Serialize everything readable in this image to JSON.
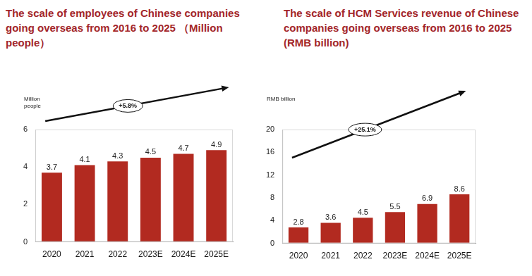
{
  "chart_data": [
    {
      "type": "bar",
      "title": "The scale of employees of Chinese companies going overseas from 2016 to 2025 （Million people）",
      "y_label": "Million people",
      "annotation": "+5.8%",
      "categories": [
        "2020",
        "2021",
        "2022",
        "2023E",
        "2024E",
        "2025E"
      ],
      "values": [
        3.7,
        4.1,
        4.3,
        4.5,
        4.7,
        4.9
      ],
      "color": "#b22a20",
      "ylim": [
        0,
        6
      ],
      "yticks": [
        0,
        2,
        4,
        6
      ],
      "grid": false,
      "data_labels": true
    },
    {
      "type": "bar",
      "title": "The scale of HCM Services revenue of Chinese companies going overseas from 2016 to 2025 (RMB billion)",
      "y_label": "RMB billion",
      "annotation": "+25.1%",
      "categories": [
        "2020",
        "2021",
        "2022",
        "2023E",
        "2024E",
        "2025E"
      ],
      "values": [
        2.8,
        3.6,
        4.5,
        5.5,
        6.9,
        8.6
      ],
      "color": "#b22a20",
      "ylim": [
        0,
        20
      ],
      "yticks": [
        0,
        4,
        8,
        12,
        16,
        20
      ],
      "grid": false,
      "data_labels": true
    }
  ]
}
